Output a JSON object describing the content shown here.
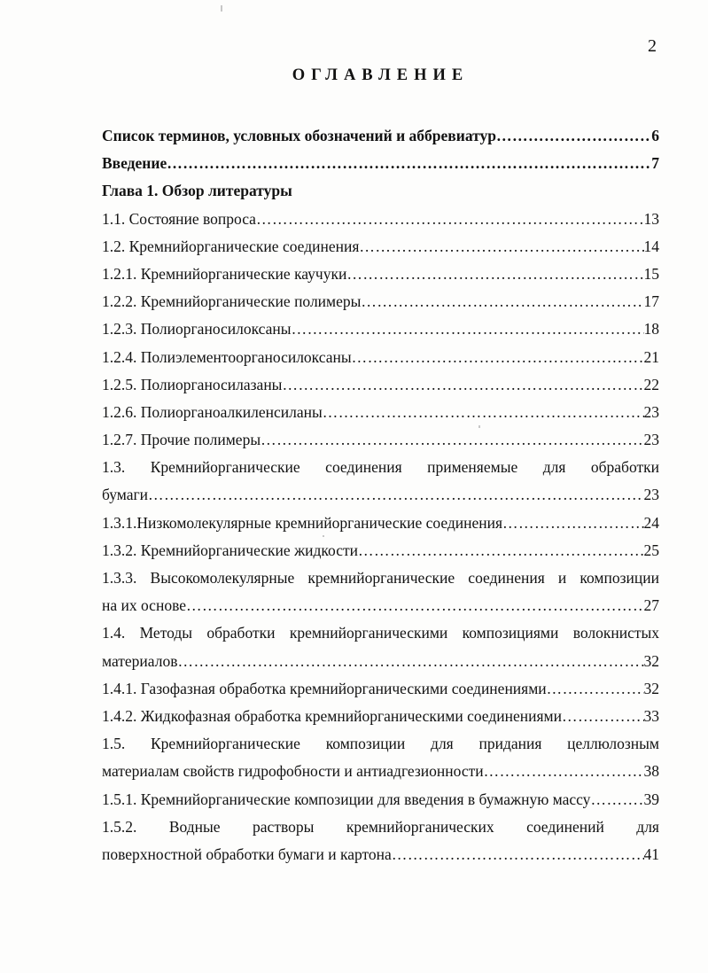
{
  "page": {
    "number": "2",
    "title": "ОГЛАВЛЕНИЕ"
  },
  "leader": "…………………………………………………………………………………………………………………………………………………………………………………………",
  "entries": [
    {
      "text": "Список терминов, условных обозначений и аббревиатур",
      "page": "6",
      "bold": true,
      "dots": true
    },
    {
      "text": "Введение",
      "page": "7",
      "bold": true,
      "dots": true
    },
    {
      "text": "Глава 1. Обзор литературы",
      "page": "",
      "bold": true,
      "dots": false
    },
    {
      "text": "1.1. Состояние вопроса",
      "page": "13",
      "dots": true
    },
    {
      "text": "1.2. Кремнийорганические соединения",
      "page": "14",
      "dots": true
    },
    {
      "text": "1.2.1. Кремнийорганические каучуки",
      "page": "15",
      "dots": true
    },
    {
      "text": "1.2.2. Кремнийорганические полимеры",
      "page": "17",
      "dots": true
    },
    {
      "text": "1.2.3. Полиорганосилоксаны",
      "page": "18",
      "dots": true
    },
    {
      "text": "1.2.4. Полиэлементоорганосилоксаны",
      "page": "21",
      "dots": true
    },
    {
      "text": "1.2.5. Полиорганосилазаны",
      "page": "22",
      "dots": true
    },
    {
      "text": "1.2.6. Полиорганоалкиленсиланы",
      "page": "23",
      "dots": true
    },
    {
      "text": "1.2.7. Прочие полимеры",
      "page": "23",
      "dots": true
    },
    {
      "text": "1.3. Кремнийорганические соединения применяемые для обработки",
      "justify": true
    },
    {
      "text": "бумаги",
      "page": "23",
      "dots": true
    },
    {
      "text": "1.3.1.Низкомолекулярные кремнийорганические соединения",
      "page": "24",
      "dots": true
    },
    {
      "text": "1.3.2. Кремнийорганические жидкости",
      "page": "25",
      "dots": true
    },
    {
      "text": "1.3.3. Высокомолекулярные кремнийорганические соединения и композиции",
      "justify": true
    },
    {
      "text": "на их основе",
      "page": "27",
      "dots": true
    },
    {
      "text": "1.4. Методы обработки кремнийорганическими композициями волокнистых",
      "justify": true
    },
    {
      "text": "материалов",
      "page": "32",
      "dots": true
    },
    {
      "text": "1.4.1. Газофазная обработка кремнийорганическими соединениями",
      "page": "32",
      "dots": true
    },
    {
      "text": "1.4.2. Жидкофазная обработка кремнийорганическими соединениями",
      "page": "33",
      "dots": true
    },
    {
      "text": "1.5. Кремнийорганические композиции для придания целлюлозным",
      "justify": true
    },
    {
      "text": "материалам свойств гидрофобности и антиадгезионности",
      "page": "38",
      "dots": true
    },
    {
      "text": "1.5.1. Кремнийорганические композиции для введения в бумажную массу",
      "page": "39",
      "dots": true
    },
    {
      "text": "1.5.2. Водные растворы кремнийорганических соединений для",
      "justify": true
    },
    {
      "text": "поверхностной обработки бумаги и картона",
      "page": "41",
      "dots": true
    }
  ]
}
